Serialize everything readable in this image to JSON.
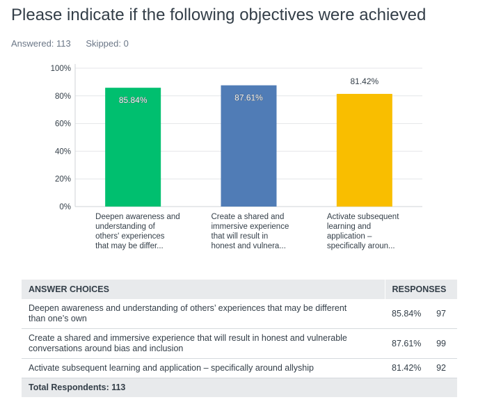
{
  "question": {
    "title": "Please indicate if the following objectives were achieved",
    "answered_label": "Answered: 113",
    "skipped_label": "Skipped: 0"
  },
  "chart_data": {
    "type": "bar",
    "categories": [
      [
        "Deepen awareness and",
        "understanding of",
        "others' experiences",
        "that may be differ..."
      ],
      [
        "Create a shared and",
        "immersive experience",
        "that will result in",
        "honest and vulnera..."
      ],
      [
        "Activate subsequent",
        "learning and",
        "application –",
        "specifically aroun..."
      ]
    ],
    "values": [
      85.84,
      87.61,
      81.42
    ],
    "value_labels": [
      "85.84%",
      "87.61%",
      "81.42%"
    ],
    "colors": [
      "#00bf6f",
      "#507cb6",
      "#f9be00"
    ],
    "ylim": [
      0,
      100
    ],
    "yticks": [
      "0%",
      "20%",
      "40%",
      "60%",
      "80%",
      "100%"
    ],
    "grid": true
  },
  "table": {
    "headers": {
      "choices": "ANSWER CHOICES",
      "responses": "RESPONSES"
    },
    "rows": [
      {
        "choice": "Deepen awareness and understanding of others’ experiences that may be different than one’s own",
        "percent": "85.84%",
        "count": "97"
      },
      {
        "choice": "Create a shared and immersive experience that will result in honest and vulnerable conversations around bias and inclusion",
        "percent": "87.61%",
        "count": "99"
      },
      {
        "choice": "Activate subsequent learning and application – specifically around allyship",
        "percent": "81.42%",
        "count": "92"
      }
    ],
    "total_label": "Total Respondents: 113"
  }
}
